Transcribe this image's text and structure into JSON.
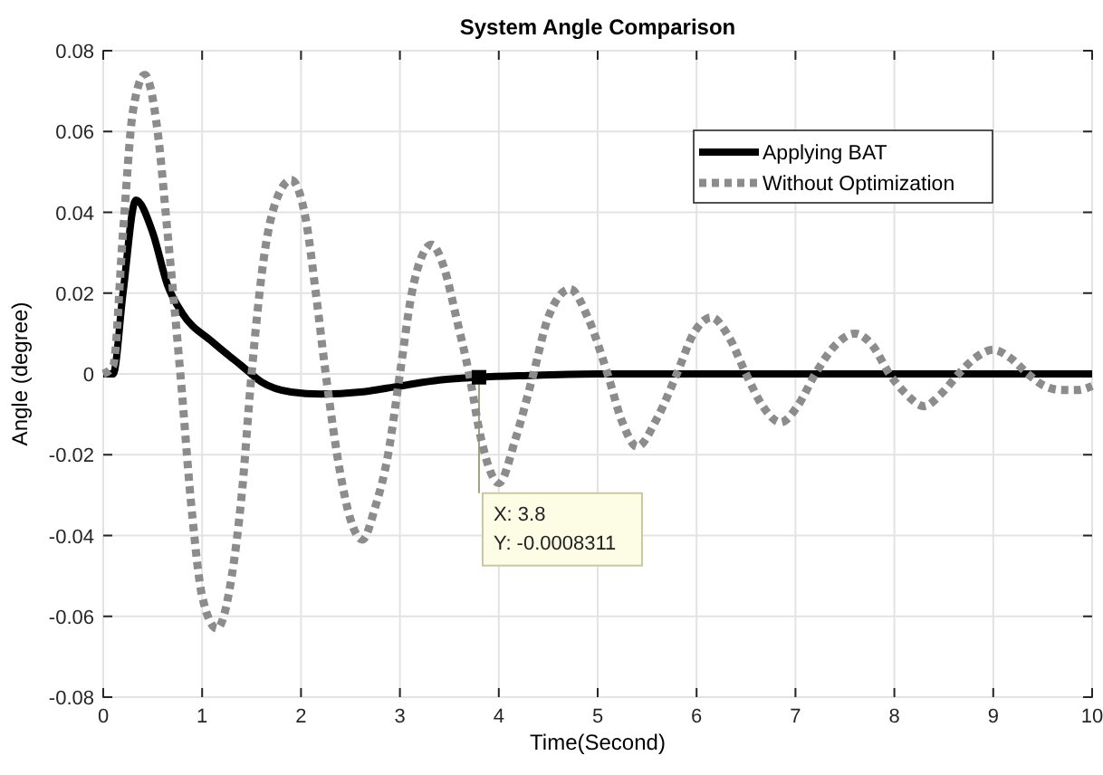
{
  "chart_data": {
    "type": "line",
    "title": "System Angle Comparison",
    "xlabel": "Time(Second)",
    "ylabel": "Angle (degree)",
    "xlim": [
      0,
      10
    ],
    "xticks": [
      0,
      1,
      2,
      3,
      4,
      5,
      6,
      7,
      8,
      9,
      10
    ],
    "ylim": [
      -0.08,
      0.08
    ],
    "yticks": [
      -0.08,
      -0.06,
      -0.04,
      -0.02,
      0,
      0.02,
      0.04,
      0.06,
      0.08
    ],
    "grid": true,
    "legend": "top right",
    "marker": "none",
    "series": [
      {
        "name": "Applying BAT",
        "color": "#000000",
        "line_style": "solid",
        "x": [
          0,
          0.1,
          0.2,
          0.33,
          0.5,
          0.65,
          0.8,
          1.1,
          1.4,
          1.6,
          1.9,
          2.2,
          2.6,
          3.0,
          3.4,
          3.8,
          4.3,
          5,
          6,
          7,
          8,
          9,
          10
        ],
        "values": [
          0,
          0,
          0.02,
          0.043,
          0.035,
          0.022,
          0.015,
          0.008,
          0.002,
          -0.002,
          -0.0045,
          -0.005,
          -0.0045,
          -0.003,
          -0.0015,
          -0.0008311,
          -0.0004,
          0,
          0,
          0,
          0,
          0,
          0
        ]
      },
      {
        "name": "Without Optimization",
        "color": "#8c8c8c",
        "line_style": "dotted",
        "x": [
          0,
          0.1,
          0.2,
          0.3,
          0.42,
          0.55,
          0.65,
          0.78,
          0.9,
          1.0,
          1.15,
          1.3,
          1.4,
          1.5,
          1.62,
          1.75,
          1.9,
          2.05,
          2.15,
          2.25,
          2.4,
          2.5,
          2.62,
          2.75,
          2.88,
          3.0,
          3.12,
          3.22,
          3.32,
          3.45,
          3.57,
          3.7,
          3.82,
          4.0,
          4.17,
          4.35,
          4.5,
          4.72,
          4.9,
          5.1,
          5.25,
          5.4,
          5.6,
          5.8,
          5.97,
          6.15,
          6.33,
          6.5,
          6.67,
          6.85,
          7.02,
          7.2,
          7.4,
          7.6,
          7.78,
          7.95,
          8.12,
          8.3,
          8.47,
          8.65,
          8.82,
          9.0,
          9.17,
          9.35,
          9.52,
          9.7,
          9.85,
          10
        ],
        "values": [
          0,
          0.002,
          0.035,
          0.065,
          0.074,
          0.06,
          0.035,
          0,
          -0.035,
          -0.055,
          -0.063,
          -0.05,
          -0.03,
          0,
          0.028,
          0.043,
          0.048,
          0.038,
          0.02,
          0,
          -0.025,
          -0.036,
          -0.041,
          -0.033,
          -0.02,
          0,
          0.02,
          0.029,
          0.032,
          0.026,
          0.014,
          0,
          -0.016,
          -0.027,
          -0.016,
          0,
          0.014,
          0.021,
          0.014,
          0,
          -0.012,
          -0.018,
          -0.011,
          0,
          0.01,
          0.014,
          0.009,
          0,
          -0.008,
          -0.012,
          -0.008,
          0,
          0.007,
          0.01,
          0.007,
          0,
          -0.005,
          -0.008,
          -0.005,
          0,
          0.004,
          0.006,
          0.004,
          0,
          -0.003,
          -0.004,
          -0.004,
          -0.003
        ]
      }
    ],
    "annotations": [
      {
        "text": "X: 3.8\nY: -0.0008311",
        "x": 3.8,
        "y": -0.0008311
      }
    ]
  }
}
